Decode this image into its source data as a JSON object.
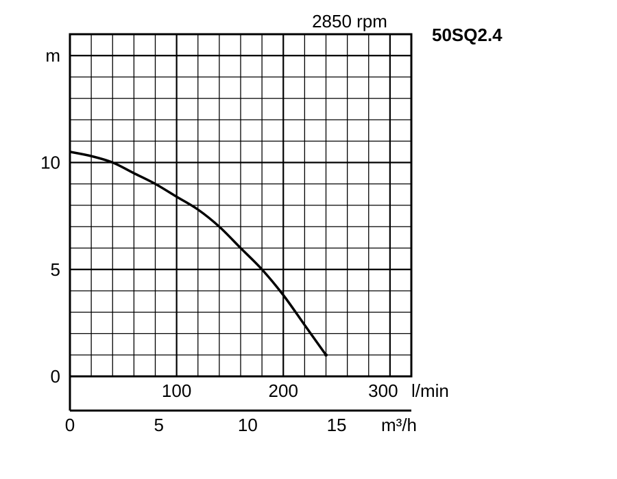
{
  "chart_data": {
    "type": "line",
    "title": "50SQ2.4",
    "speed_label": "2850 rpm",
    "ylabel": "m",
    "ylim": [
      0,
      16
    ],
    "y_ticks": [
      0,
      5,
      10
    ],
    "y_tick_labels": [
      "0",
      "5",
      "10"
    ],
    "x_flow_lpm": {
      "xlim": [
        0,
        320
      ],
      "ticks": [
        100,
        200,
        300
      ],
      "tick_labels": [
        "100",
        "200",
        "300"
      ],
      "unit": "l/min"
    },
    "x_flow_m3h": {
      "xlim": [
        0,
        19.2
      ],
      "ticks": [
        0,
        5,
        10,
        15
      ],
      "tick_labels": [
        "0",
        "5",
        "10",
        "15"
      ],
      "unit": "m³/h"
    },
    "grid": true,
    "series": [
      {
        "x": [
          0,
          20,
          40,
          60,
          80,
          100,
          120,
          140,
          160,
          180,
          200,
          220,
          240
        ],
        "y": [
          10.5,
          10.3,
          10.0,
          9.5,
          9.0,
          8.4,
          7.8,
          7.0,
          6.0,
          5.0,
          3.8,
          2.4,
          1.0
        ]
      }
    ]
  }
}
